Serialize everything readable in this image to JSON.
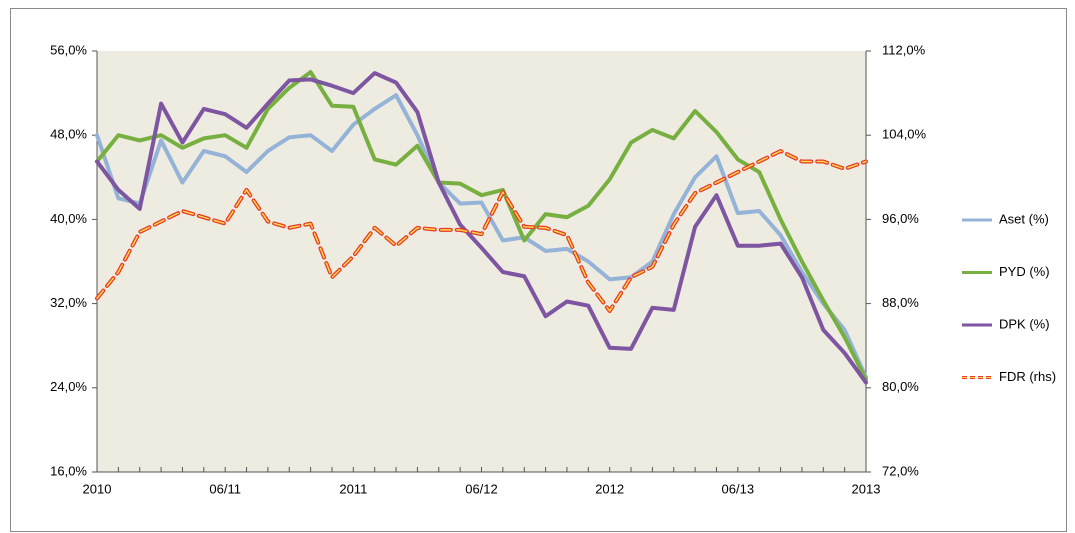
{
  "chart_data": {
    "type": "line",
    "categories": [
      "2010",
      null,
      null,
      null,
      null,
      null,
      "06/11",
      null,
      null,
      null,
      null,
      null,
      "2011",
      null,
      null,
      null,
      null,
      null,
      "06/12",
      null,
      null,
      null,
      null,
      null,
      "2012",
      null,
      null,
      null,
      null,
      null,
      "06/13",
      null,
      null,
      null,
      null,
      null,
      "2013"
    ],
    "series": [
      {
        "name": "Aset (%)",
        "color": "#95b3d7",
        "values": [
          48,
          42,
          41.5,
          47.5,
          43.5,
          46.5,
          46,
          44.5,
          46.5,
          47.8,
          48,
          46.5,
          49,
          50.5,
          51.8,
          48,
          43.5,
          41.5,
          41.6,
          38,
          38.3,
          37,
          37.2,
          36,
          34.3,
          34.5,
          36,
          40.5,
          44,
          46,
          40.6,
          40.8,
          38.5,
          35,
          32,
          29.5,
          25
        ]
      },
      {
        "name": "PYD (%)",
        "color": "#77b041",
        "values": [
          45.5,
          48,
          47.5,
          48,
          46.8,
          47.7,
          48,
          46.8,
          50.5,
          52.5,
          54,
          50.8,
          50.7,
          45.7,
          45.2,
          47,
          43.5,
          43.4,
          42.3,
          42.8,
          38,
          40.5,
          40.2,
          41.3,
          43.8,
          47.3,
          48.5,
          47.7,
          50.3,
          48.3,
          45.7,
          44.5,
          40,
          36,
          32.3,
          28.8,
          24.8
        ]
      },
      {
        "name": "DPK (%)",
        "color": "#7d55a0",
        "values": [
          45.5,
          42.8,
          41,
          51,
          47.3,
          50.5,
          50,
          48.7,
          51,
          53.2,
          53.3,
          52.7,
          52,
          53.9,
          53,
          50.2,
          43.5,
          39.5,
          37.3,
          35,
          34.6,
          30.8,
          32.2,
          31.8,
          27.8,
          27.7,
          31.6,
          31.4,
          39.3,
          42.3,
          37.5,
          37.5,
          37.7,
          34.5,
          29.5,
          27.3,
          24.5
        ]
      },
      {
        "name": "FDR (rhs)",
        "color": "#e8392a",
        "axis": "y2",
        "dashed": true,
        "values": [
          88.5,
          91,
          94.8,
          95.8,
          96.8,
          96.2,
          95.6,
          98.8,
          95.8,
          95.2,
          95.6,
          90.5,
          92.5,
          95.2,
          93.5,
          95.2,
          95,
          95,
          94.6,
          98.6,
          95.3,
          95.2,
          94.5,
          90,
          87.3,
          90.5,
          91.5,
          95.5,
          98.5,
          99.5,
          100.5,
          101.5,
          102.5,
          101.5,
          101.5,
          100.8,
          101.5
        ]
      }
    ],
    "ylim": [
      16,
      56
    ],
    "yticks": [
      {
        "value": 16,
        "label": "16,0%"
      },
      {
        "value": 24,
        "label": "24,0%"
      },
      {
        "value": 32,
        "label": "32,0%"
      },
      {
        "value": 40,
        "label": "40,0%"
      },
      {
        "value": 48,
        "label": "48,0%"
      },
      {
        "value": 56,
        "label": "56,0%"
      }
    ],
    "y2lim": [
      72,
      112
    ],
    "y2ticks": [
      {
        "value": 72,
        "label": "72,0%"
      },
      {
        "value": 80,
        "label": "80,0%"
      },
      {
        "value": 88,
        "label": "88,0%"
      },
      {
        "value": 96,
        "label": "96,0%"
      },
      {
        "value": 104,
        "label": "104,0%"
      },
      {
        "value": 112,
        "label": "112,0%"
      }
    ],
    "grid": false,
    "legend": "right",
    "plot_background": "#eeebe1"
  }
}
